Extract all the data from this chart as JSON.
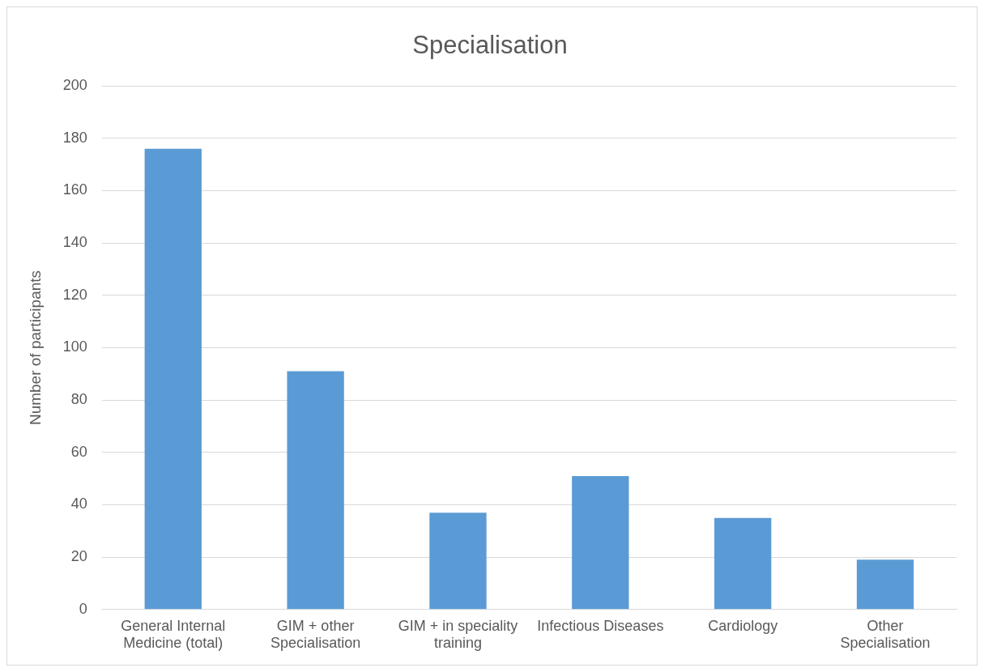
{
  "chart_data": {
    "type": "bar",
    "title": "Specialisation",
    "ylabel": "Number of participants",
    "categories": [
      "General Internal Medicine (total)",
      "GIM + other Specialisation",
      "GIM + in speciality training",
      "Infectious Diseases",
      "Cardiology",
      "Other Specialisation"
    ],
    "values": [
      176,
      91,
      37,
      51,
      35,
      19
    ],
    "color": "#5b9bd5",
    "ylim": [
      0,
      200
    ],
    "yticks": [
      0,
      20,
      40,
      60,
      80,
      100,
      120,
      140,
      160,
      180,
      200
    ],
    "grid": "y",
    "legend": false
  }
}
